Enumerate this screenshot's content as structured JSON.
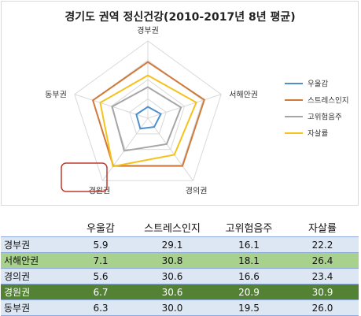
{
  "chart_data": {
    "type": "radar",
    "title": "경기도 권역 정신건강(2010-2017년 8년 평균)",
    "categories": [
      "경부권",
      "서해안권",
      "경의권",
      "경원권",
      "동부권"
    ],
    "series": [
      {
        "name": "우울감",
        "color": "#4f8fcf",
        "values": [
          5.9,
          7.1,
          5.6,
          6.7,
          6.3
        ]
      },
      {
        "name": "스트레스인지",
        "color": "#d07a3a",
        "values": [
          29.1,
          30.8,
          30.6,
          30.6,
          30.0
        ]
      },
      {
        "name": "고위험음주",
        "color": "#a6a6a6",
        "values": [
          16.1,
          18.1,
          16.6,
          20.9,
          19.5
        ]
      },
      {
        "name": "자살률",
        "color": "#f5c21b",
        "values": [
          22.2,
          26.4,
          23.4,
          30.9,
          26.0
        ]
      }
    ],
    "rmax": 40,
    "highlight": "경원권"
  },
  "table": {
    "headers": [
      "",
      "우울감",
      "스트레스인지",
      "고위험음주",
      "자살률"
    ],
    "rows": [
      {
        "region": "경부권",
        "values": [
          "5.9",
          "29.1",
          "16.1",
          "22.2"
        ],
        "style": "odd"
      },
      {
        "region": "서해안권",
        "values": [
          "7.1",
          "30.8",
          "18.1",
          "26.4"
        ],
        "style": "hl-light"
      },
      {
        "region": "경의권",
        "values": [
          "5.6",
          "30.6",
          "16.6",
          "23.4"
        ],
        "style": "odd"
      },
      {
        "region": "경원권",
        "values": [
          "6.7",
          "30.6",
          "20.9",
          "30.9"
        ],
        "style": "hl-dark"
      },
      {
        "region": "동부권",
        "values": [
          "6.3",
          "30.0",
          "19.5",
          "26.0"
        ],
        "style": "odd"
      }
    ]
  }
}
